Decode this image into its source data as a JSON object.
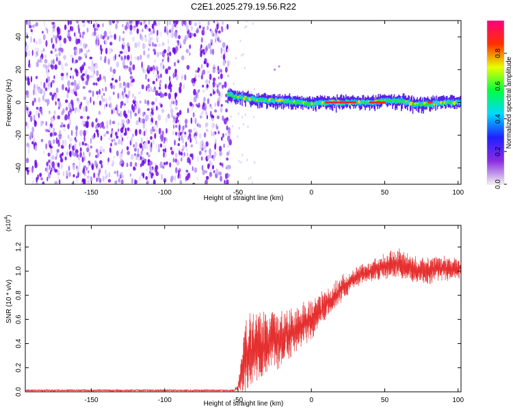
{
  "figure_title": "C2E1.2025.279.19.56.R22",
  "colors": {
    "signal_line": "#e53030",
    "background": "#ffffff",
    "axis": "#000000"
  },
  "chart_data": [
    {
      "type": "heatmap",
      "title": "C2E1.2025.279.19.56.R22",
      "xlabel": "Height of straight line (km)",
      "ylabel": "Frequency (Hz)",
      "xlim": [
        -195,
        102
      ],
      "ylim": [
        -50,
        50
      ],
      "xticks": [
        -150,
        -100,
        -50,
        0,
        50,
        100
      ],
      "yticks": [
        -40,
        -20,
        0,
        20,
        40
      ],
      "grid": false,
      "noise_region_x": [
        -195,
        -57
      ],
      "signal_region_x": [
        -57,
        102
      ],
      "signal_track": {
        "x": [
          -57,
          -50,
          -40,
          -30,
          -20,
          -10,
          0,
          10,
          20,
          30,
          40,
          50,
          60,
          70,
          80,
          90,
          100
        ],
        "freq_hz": [
          5,
          3,
          2,
          1,
          1,
          0,
          -1,
          0,
          0,
          0,
          0,
          1,
          1,
          -1,
          -1,
          0,
          0
        ]
      },
      "colorbar": {
        "label": "Normalized spectral amplitude",
        "range": [
          0,
          1
        ],
        "ticks": [
          "0.0",
          "0.2",
          "0.4",
          "0.6",
          "0.8"
        ],
        "tick_values": [
          0,
          0.2,
          0.4,
          0.6,
          0.8
        ],
        "colormap": [
          "#f0f0f0",
          "#8a2be2",
          "#2020ff",
          "#00d8ff",
          "#00ff40",
          "#e8ff00",
          "#ff3000",
          "#ff0080"
        ]
      }
    },
    {
      "type": "line",
      "xlabel": "Height of straight line (km)",
      "ylabel": "SNR (10 * v/v)",
      "y_multiplier": "(x10",
      "y_multiplier_exp": "4",
      "y_multiplier_close": ")",
      "xlim": [
        -195,
        102
      ],
      "ylim": [
        0,
        1.38
      ],
      "xticks": [
        -150,
        -100,
        -50,
        0,
        50,
        100
      ],
      "yticks": [
        "0.0",
        "0.2",
        "0.4",
        "0.6",
        "0.8",
        "1.0",
        "1.2"
      ],
      "ytick_values": [
        0,
        0.2,
        0.4,
        0.6,
        0.8,
        1.0,
        1.2
      ],
      "grid": false,
      "series": [
        {
          "name": "SNR",
          "x": [
            -195,
            -100,
            -55,
            -50,
            -45,
            -40,
            -30,
            -20,
            -10,
            0,
            10,
            20,
            30,
            40,
            50,
            60,
            70,
            80,
            90,
            100,
            102
          ],
          "values": [
            0.01,
            0.01,
            0.02,
            0.03,
            0.3,
            0.35,
            0.4,
            0.45,
            0.52,
            0.6,
            0.72,
            0.85,
            0.95,
            1.0,
            1.05,
            1.05,
            1.02,
            1.0,
            1.03,
            1.02,
            1.02
          ],
          "spread": [
            0,
            0,
            0.005,
            0.02,
            0.3,
            0.3,
            0.25,
            0.22,
            0.18,
            0.15,
            0.12,
            0.1,
            0.08,
            0.08,
            0.1,
            0.12,
            0.1,
            0.1,
            0.1,
            0.08,
            0.08
          ]
        }
      ]
    }
  ]
}
